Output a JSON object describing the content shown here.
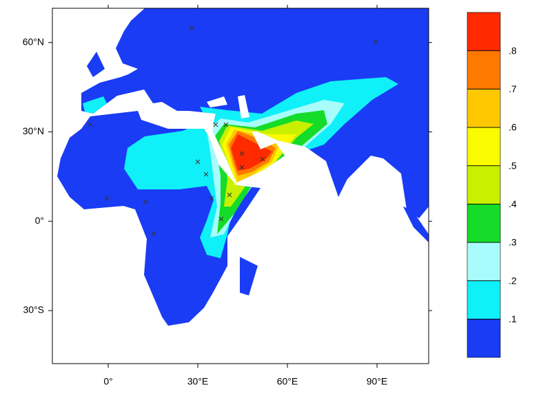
{
  "map": {
    "xlim": [
      -18.7,
      107.3
    ],
    "ylim": [
      -47.8,
      71.5
    ],
    "xticks": [
      {
        "value": 0,
        "label": "0°"
      },
      {
        "value": 30,
        "label": "30°E"
      },
      {
        "value": 60,
        "label": "60°E"
      },
      {
        "value": 90,
        "label": "90°E"
      }
    ],
    "yticks": [
      {
        "value": 60,
        "label": "60°N"
      },
      {
        "value": 30,
        "label": "30°N"
      },
      {
        "value": 0,
        "label": "0°"
      },
      {
        "value": -30,
        "label": "30°S"
      }
    ]
  },
  "colorbar": {
    "levels": [
      {
        "value": 0.1,
        "label": ".1"
      },
      {
        "value": 0.2,
        "label": ".2"
      },
      {
        "value": 0.3,
        "label": ".3"
      },
      {
        "value": 0.4,
        "label": ".4"
      },
      {
        "value": 0.5,
        "label": ".5"
      },
      {
        "value": 0.6,
        "label": ".6"
      },
      {
        "value": 0.7,
        "label": ".7"
      },
      {
        "value": 0.8,
        "label": ".8"
      }
    ],
    "colors": [
      "#1a3cf5",
      "#10f0f8",
      "#a8fcfc",
      "#14dc28",
      "#c8f000",
      "#fafa00",
      "#ffc800",
      "#ff7800",
      "#ff2a00"
    ]
  }
}
